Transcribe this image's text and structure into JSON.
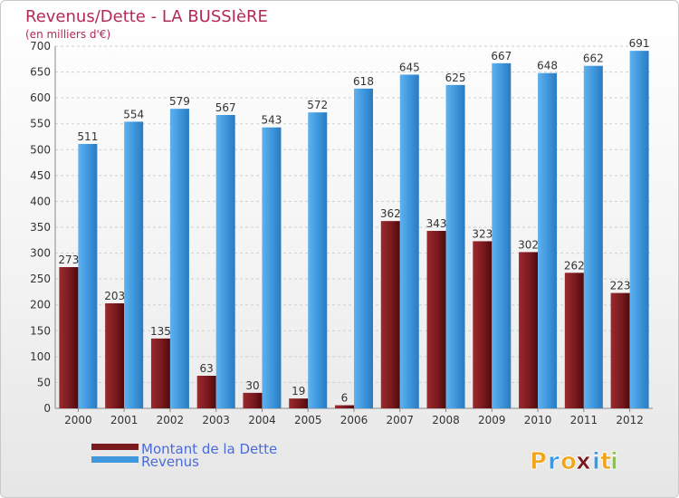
{
  "chart_data": {
    "type": "bar",
    "title": "Revenus/Dette - LA BUSSIèRE",
    "subtitle": "(en milliers d'€)",
    "categories": [
      "2000",
      "2001",
      "2002",
      "2003",
      "2004",
      "2005",
      "2006",
      "2007",
      "2008",
      "2009",
      "2010",
      "2011",
      "2012"
    ],
    "series": [
      {
        "name": "Montant de la Dette",
        "values": [
          273,
          203,
          135,
          63,
          30,
          19,
          6,
          362,
          343,
          323,
          302,
          262,
          223
        ],
        "color": "#7a1a1e"
      },
      {
        "name": "Revenus",
        "values": [
          511,
          554,
          579,
          567,
          543,
          572,
          618,
          645,
          625,
          667,
          648,
          662,
          691
        ],
        "color": "#3f97dd"
      }
    ],
    "ylim": [
      0,
      700
    ],
    "yticks": [
      0,
      50,
      100,
      150,
      200,
      250,
      300,
      350,
      400,
      450,
      500,
      550,
      600,
      650,
      700
    ],
    "xlabel": "",
    "ylabel": "",
    "grid": true,
    "legend": "bottom-left"
  },
  "logo": {
    "letters": [
      "P",
      "r",
      "o",
      "x",
      "i",
      "t",
      "i"
    ],
    "colors": [
      "#f2a51a",
      "#3f97dd",
      "#f2a51a",
      "#7a1a1e",
      "#3f97dd",
      "#f2a51a",
      "#8bc34a"
    ]
  }
}
